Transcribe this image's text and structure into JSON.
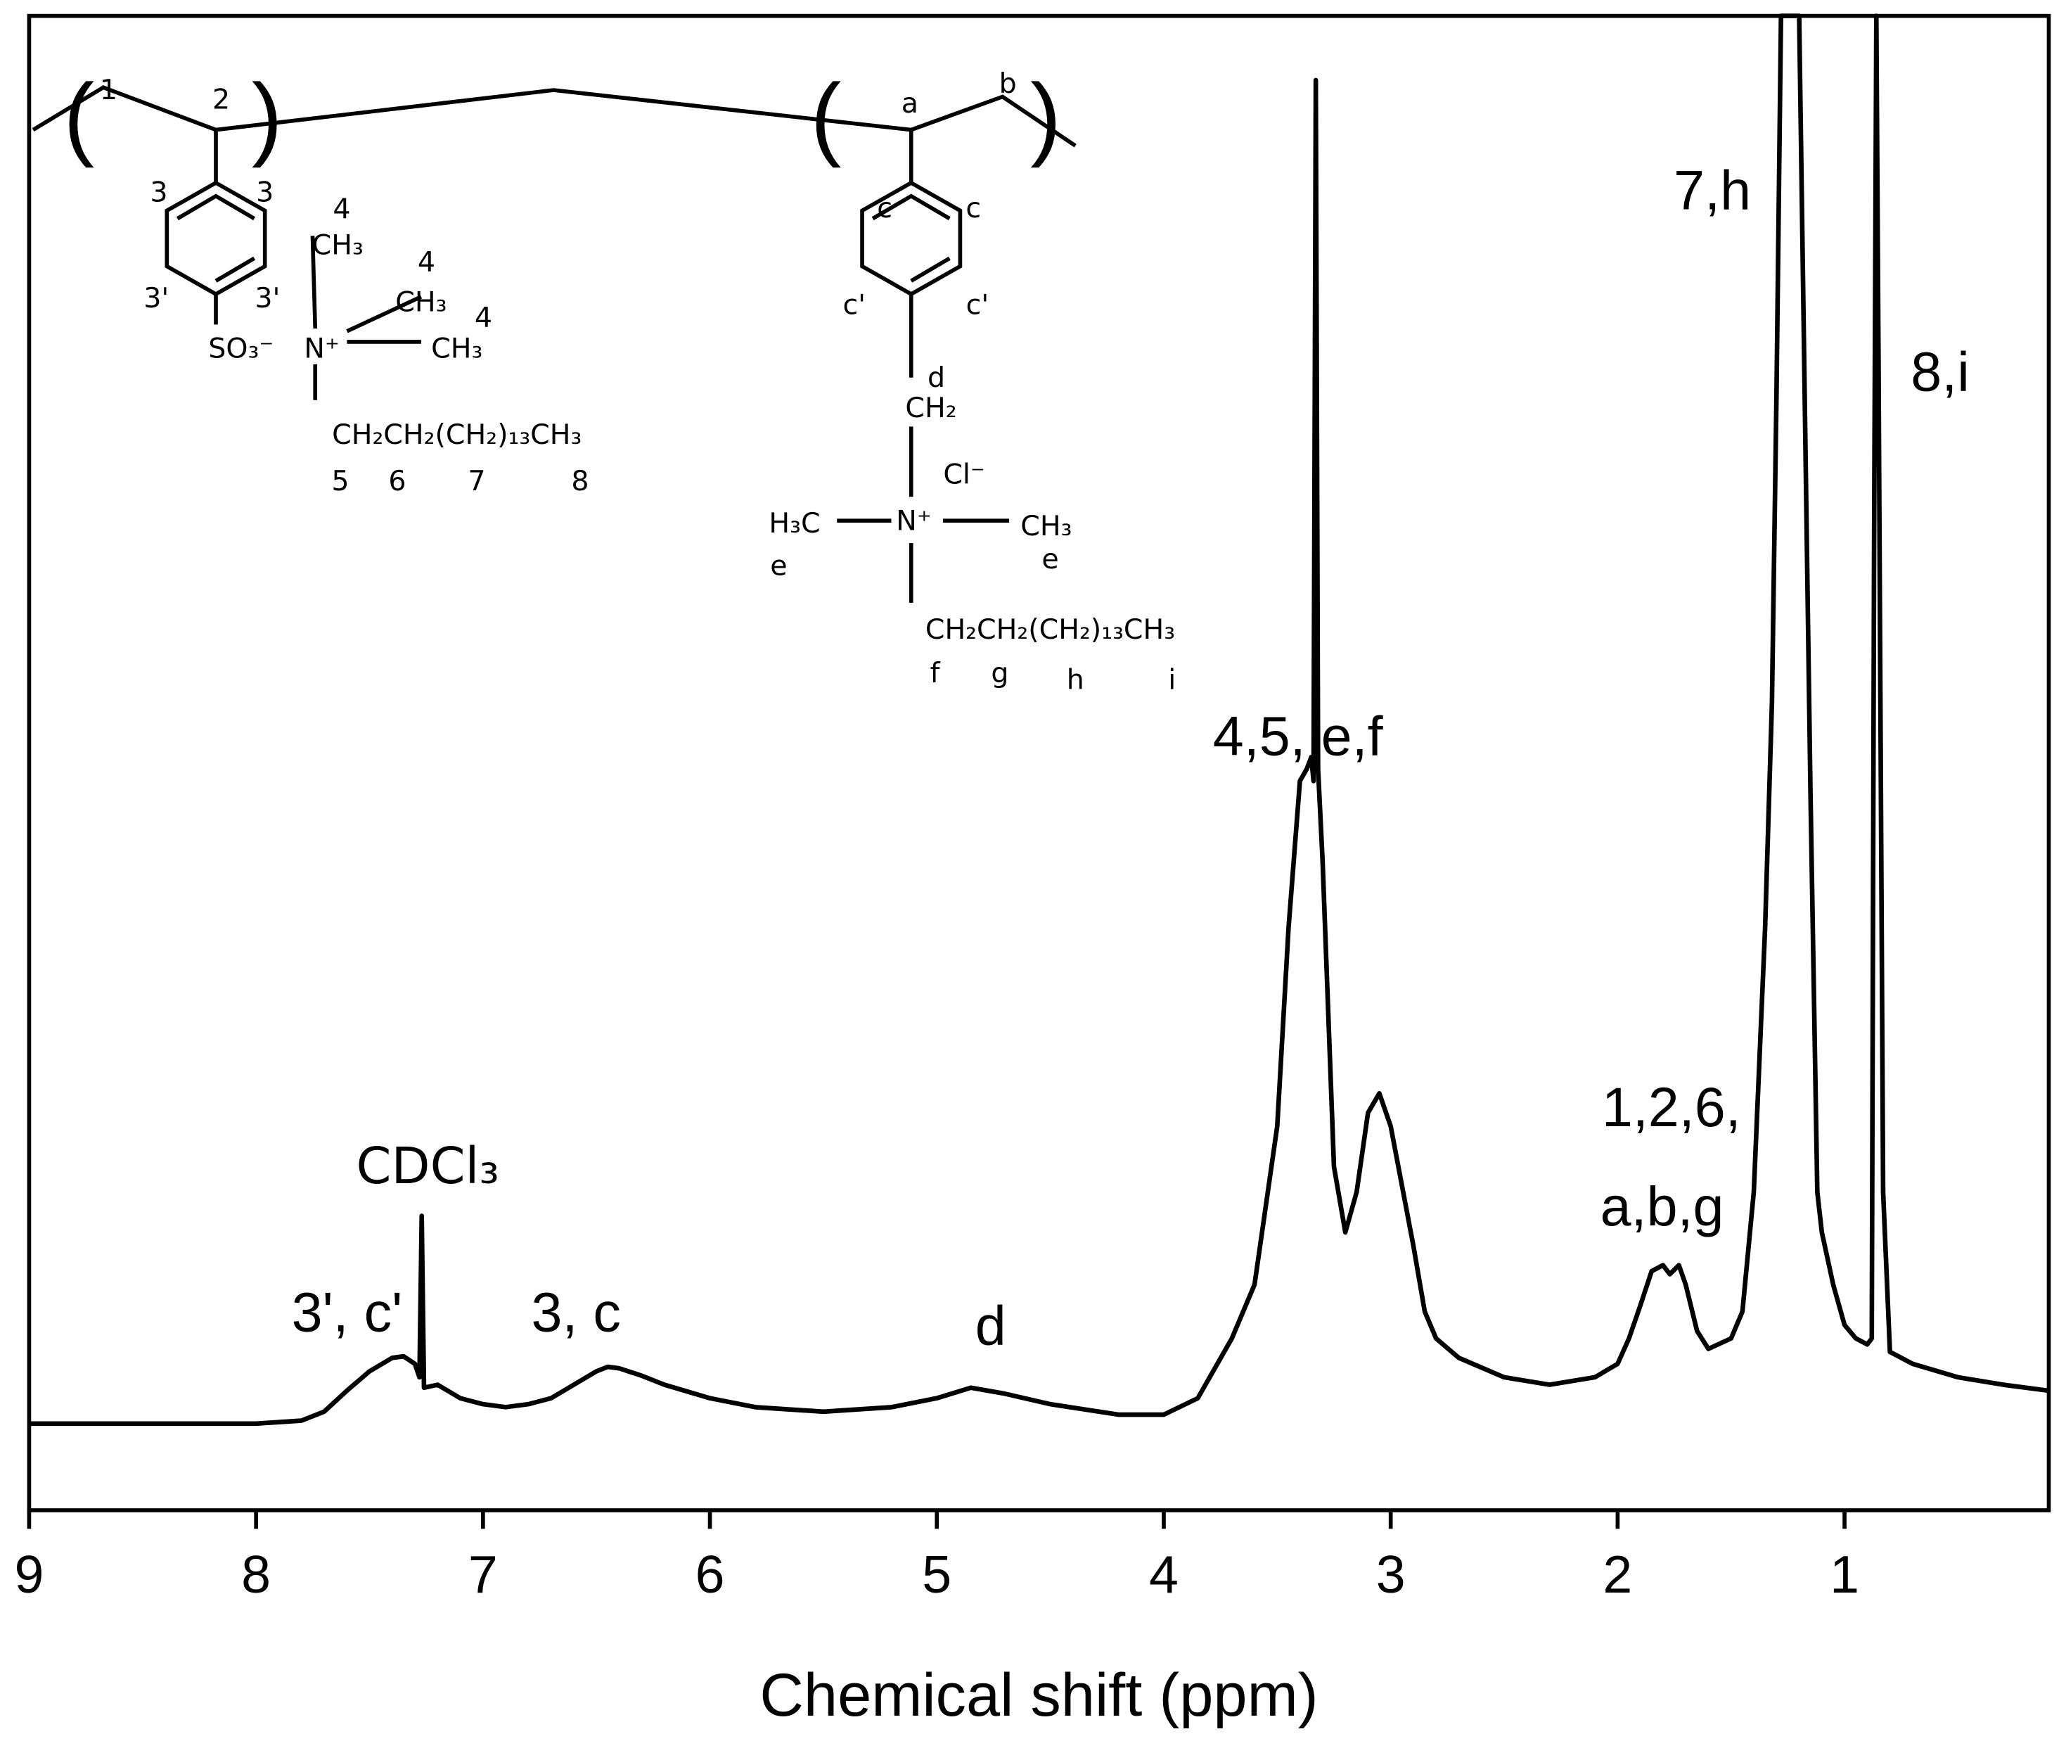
{
  "chart_data": {
    "type": "line",
    "x_label": "Chemical shift (ppm)",
    "xlim": [
      9,
      0.1
    ],
    "xticks": [
      9,
      8,
      7,
      6,
      5,
      4,
      3,
      2,
      1
    ],
    "ylim": [
      0,
      100
    ],
    "color": "#000000",
    "x": [
      9.0,
      8.0,
      7.8,
      7.7,
      7.6,
      7.5,
      7.4,
      7.35,
      7.3,
      7.28,
      7.27,
      7.26,
      7.2,
      7.1,
      7.0,
      6.9,
      6.8,
      6.7,
      6.6,
      6.5,
      6.45,
      6.4,
      6.3,
      6.2,
      6.0,
      5.8,
      5.5,
      5.2,
      5.0,
      4.85,
      4.7,
      4.5,
      4.2,
      4.0,
      3.85,
      3.7,
      3.6,
      3.5,
      3.45,
      3.4,
      3.37,
      3.35,
      3.34,
      3.33,
      3.32,
      3.3,
      3.25,
      3.2,
      3.15,
      3.1,
      3.05,
      3.0,
      2.9,
      2.85,
      2.8,
      2.7,
      2.5,
      2.3,
      2.1,
      2.0,
      1.95,
      1.9,
      1.85,
      1.8,
      1.77,
      1.73,
      1.7,
      1.65,
      1.6,
      1.5,
      1.45,
      1.4,
      1.35,
      1.32,
      1.3,
      1.28,
      1.2,
      1.15,
      1.12,
      1.1,
      1.05,
      1.0,
      0.95,
      0.9,
      0.88,
      0.87,
      0.86,
      0.85,
      0.83,
      0.8,
      0.7,
      0.5,
      0.3,
      0.1
    ],
    "values": [
      5.8,
      5.8,
      6.0,
      6.6,
      8.0,
      9.3,
      10.2,
      10.3,
      9.8,
      8.9,
      19.7,
      8.2,
      8.4,
      7.5,
      7.1,
      6.9,
      7.1,
      7.5,
      8.4,
      9.3,
      9.6,
      9.5,
      9.0,
      8.4,
      7.5,
      6.9,
      6.6,
      6.9,
      7.5,
      8.2,
      7.8,
      7.1,
      6.4,
      6.4,
      7.5,
      11.5,
      15.1,
      25.7,
      39,
      48.8,
      49.6,
      50.4,
      48.8,
      95.7,
      49.6,
      43.4,
      23,
      18.6,
      21.3,
      26.6,
      27.9,
      25.7,
      17.7,
      13.3,
      11.5,
      10.2,
      8.9,
      8.4,
      8.9,
      9.8,
      11.5,
      13.7,
      16,
      16.4,
      15.8,
      16.4,
      15.1,
      12,
      10.8,
      11.5,
      13.3,
      21.3,
      39,
      54,
      74.5,
      100,
      100,
      47.9,
      21.3,
      18.6,
      15.1,
      12.4,
      11.5,
      11.1,
      11.5,
      63.8,
      100,
      76.2,
      21.3,
      10.6,
      9.8,
      8.9,
      8.4,
      8.0
    ],
    "annotations": [
      "3', c'",
      "CDCl₃",
      "3, c",
      "d",
      "4,5, e,f",
      "1,2,6,",
      "a,b,g",
      "7,h",
      "8,i"
    ],
    "structure_labels": [
      "1",
      "2",
      "3",
      "3",
      "4",
      "CH₃",
      "4",
      "CH₃",
      "4",
      "CH₃",
      "3'",
      "3'",
      "SO₃⁻",
      "N⁺",
      "CH₂CH₂(CH₂)₁₃CH₃",
      "5",
      "6",
      "7",
      "8",
      "a",
      "b",
      "c",
      "c",
      "c'",
      "c'",
      "d",
      "CH₂",
      "Cl⁻",
      "H₃C",
      "N⁺",
      "CH₃",
      "e",
      "e",
      "CH₂CH₂(CH₂)₁₃CH₃",
      "f",
      "g",
      "h",
      "i"
    ]
  }
}
